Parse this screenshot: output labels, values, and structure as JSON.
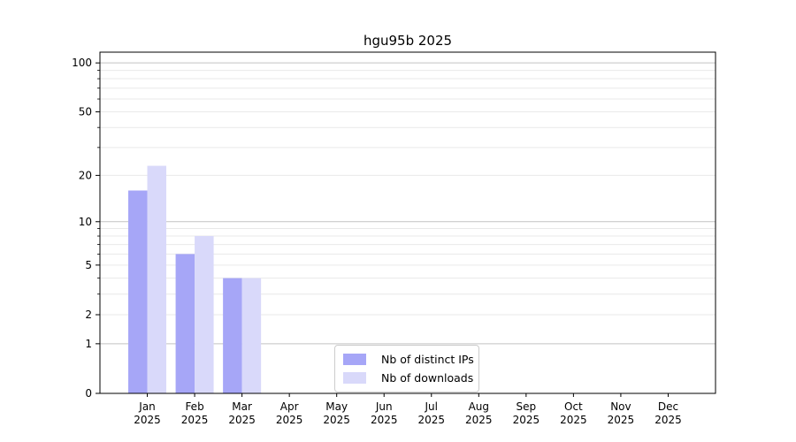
{
  "chart_data": {
    "type": "bar",
    "title": "hgu95b 2025",
    "categories": [
      "Jan",
      "Feb",
      "Mar",
      "Apr",
      "May",
      "Jun",
      "Jul",
      "Aug",
      "Sep",
      "Oct",
      "Nov",
      "Dec"
    ],
    "category_year": "2025",
    "series": [
      {
        "name": "Nb of distinct IPs",
        "color": "#a6a6f7",
        "values": [
          16,
          6,
          4,
          0,
          0,
          0,
          0,
          0,
          0,
          0,
          0,
          0
        ]
      },
      {
        "name": "Nb of downloads",
        "color": "#d9d9fa",
        "values": [
          23,
          8,
          4,
          0,
          0,
          0,
          0,
          0,
          0,
          0,
          0,
          0
        ]
      }
    ],
    "y_ticks": [
      0,
      1,
      2,
      5,
      10,
      20,
      50,
      100
    ],
    "y_minor_gridlines": [
      2,
      3,
      4,
      5,
      6,
      7,
      8,
      9,
      20,
      30,
      40,
      50,
      60,
      70,
      80,
      90
    ],
    "y_major_gridlines": [
      1,
      10,
      100
    ],
    "scale": "log1p",
    "ylim": [
      0,
      116
    ],
    "grid": true,
    "legend_position": "lower center"
  }
}
